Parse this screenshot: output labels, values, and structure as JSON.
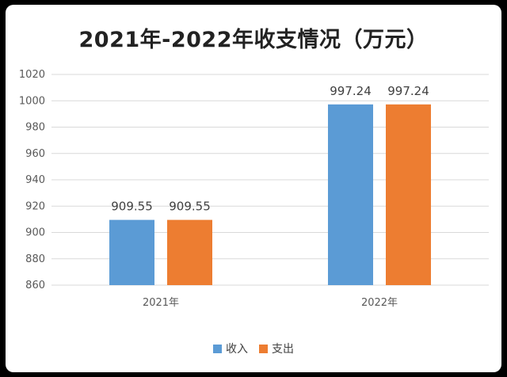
{
  "chart_data": {
    "type": "bar",
    "title": "2021年-2022年收支情况（万元）",
    "categories": [
      "2021年",
      "2022年"
    ],
    "series": [
      {
        "name": "收入",
        "values": [
          909.55,
          997.24
        ],
        "color": "#5b9bd5"
      },
      {
        "name": "支出",
        "values": [
          909.55,
          997.24
        ],
        "color": "#ed7d31"
      }
    ],
    "data_labels": [
      [
        "909.55",
        "909.55"
      ],
      [
        "997.24",
        "997.24"
      ]
    ],
    "yticks": [
      "860",
      "880",
      "900",
      "920",
      "940",
      "960",
      "980",
      "1000",
      "1020"
    ],
    "ylim": [
      860,
      1020
    ],
    "grid": true,
    "legend": "bottom"
  }
}
